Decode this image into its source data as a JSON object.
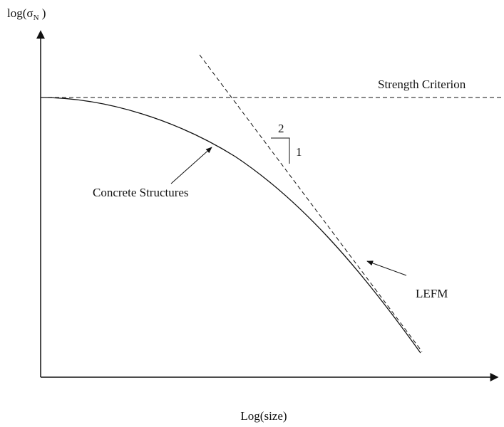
{
  "y_axis": {
    "label": "log(σ",
    "subscript": "N",
    "label_end": " )"
  },
  "x_axis": {
    "label": "Log(size)"
  },
  "strength_line": {
    "label": "Strength Criterion"
  },
  "slope": {
    "run": "2",
    "rise": "1"
  },
  "curve": {
    "label": "Concrete Structures"
  },
  "lefm": {
    "label": "LEFM"
  }
}
